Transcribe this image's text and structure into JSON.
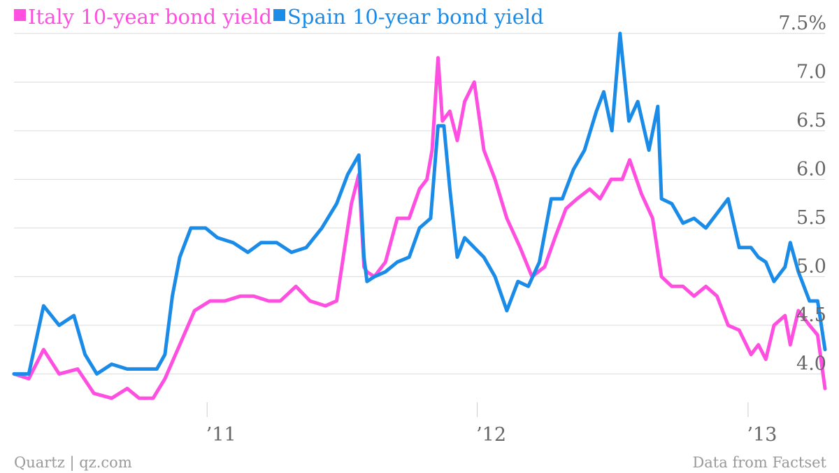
{
  "footer": {
    "source_left": "Quartz | qz.com",
    "source_right": "Data from Factset"
  },
  "legend": {
    "placement": "top-left"
  },
  "colors": {
    "italy": "#ff4fe0",
    "spain": "#1a8ce8",
    "grid": "#dcdcdc",
    "tick_text": "#666666",
    "footer_text": "#999999"
  },
  "chart_data": {
    "type": "line",
    "title": "",
    "xlabel": "",
    "ylabel": "",
    "grid": true,
    "x_range": [
      "2010-04-15",
      "2013-04-15"
    ],
    "ylim": [
      3.6,
      7.7
    ],
    "y_ticks": [
      {
        "value": 4.0,
        "label": "4.0"
      },
      {
        "value": 4.5,
        "label": "4.5"
      },
      {
        "value": 5.0,
        "label": "5.0"
      },
      {
        "value": 5.5,
        "label": "5.5"
      },
      {
        "value": 6.0,
        "label": "6.0"
      },
      {
        "value": 6.5,
        "label": "6.5"
      },
      {
        "value": 7.0,
        "label": "7.0"
      },
      {
        "value": 7.5,
        "label": "7.5%"
      }
    ],
    "x_ticks": [
      {
        "value": "2011-01-01",
        "label": "’11"
      },
      {
        "value": "2012-01-01",
        "label": "’12"
      },
      {
        "value": "2013-01-01",
        "label": "’13"
      }
    ],
    "series": [
      {
        "name": "Italy 10-year bond yield",
        "color": "#ff4fe0",
        "x": [
          "2010-04-15",
          "2010-05-05",
          "2010-05-25",
          "2010-06-15",
          "2010-07-10",
          "2010-08-01",
          "2010-08-25",
          "2010-09-15",
          "2010-10-01",
          "2010-10-20",
          "2010-11-05",
          "2010-11-25",
          "2010-12-15",
          "2011-01-05",
          "2011-01-25",
          "2011-02-15",
          "2011-03-05",
          "2011-03-25",
          "2011-04-10",
          "2011-05-01",
          "2011-05-20",
          "2011-06-10",
          "2011-06-25",
          "2011-07-05",
          "2011-07-15",
          "2011-07-25",
          "2011-08-01",
          "2011-08-05",
          "2011-08-15",
          "2011-08-30",
          "2011-09-15",
          "2011-10-01",
          "2011-10-15",
          "2011-10-25",
          "2011-11-01",
          "2011-11-09",
          "2011-11-15",
          "2011-11-25",
          "2011-12-05",
          "2011-12-15",
          "2011-12-28",
          "2012-01-10",
          "2012-01-25",
          "2012-02-10",
          "2012-02-28",
          "2012-03-15",
          "2012-04-01",
          "2012-04-15",
          "2012-04-30",
          "2012-05-15",
          "2012-06-01",
          "2012-06-15",
          "2012-06-30",
          "2012-07-15",
          "2012-07-25",
          "2012-08-10",
          "2012-08-25",
          "2012-09-06",
          "2012-09-20",
          "2012-10-05",
          "2012-10-20",
          "2012-11-05",
          "2012-11-20",
          "2012-12-05",
          "2012-12-20",
          "2013-01-05",
          "2013-01-15",
          "2013-01-25",
          "2013-02-05",
          "2013-02-20",
          "2013-02-27",
          "2013-03-10",
          "2013-03-25",
          "2013-04-05",
          "2013-04-15"
        ],
        "values": [
          4.0,
          3.95,
          4.25,
          4.0,
          4.05,
          3.8,
          3.75,
          3.85,
          3.75,
          3.75,
          3.95,
          4.3,
          4.65,
          4.75,
          4.75,
          4.8,
          4.8,
          4.75,
          4.75,
          4.9,
          4.75,
          4.7,
          4.75,
          5.25,
          5.75,
          6.05,
          5.1,
          5.05,
          5.0,
          5.15,
          5.6,
          5.6,
          5.9,
          6.0,
          6.3,
          7.25,
          6.6,
          6.7,
          6.4,
          6.8,
          7.0,
          6.3,
          6.0,
          5.6,
          5.3,
          5.0,
          5.1,
          5.4,
          5.7,
          5.8,
          5.9,
          5.8,
          6.0,
          6.0,
          6.2,
          5.85,
          5.6,
          5.0,
          4.9,
          4.9,
          4.8,
          4.9,
          4.8,
          4.5,
          4.45,
          4.2,
          4.3,
          4.15,
          4.5,
          4.6,
          4.3,
          4.65,
          4.5,
          4.4,
          3.85
        ]
      },
      {
        "name": "Spain 10-year bond yield",
        "color": "#1a8ce8",
        "x": [
          "2010-04-15",
          "2010-05-05",
          "2010-05-25",
          "2010-06-15",
          "2010-07-05",
          "2010-07-20",
          "2010-08-05",
          "2010-08-25",
          "2010-09-15",
          "2010-10-05",
          "2010-10-25",
          "2010-11-05",
          "2010-11-15",
          "2010-11-25",
          "2010-12-10",
          "2010-12-30",
          "2011-01-15",
          "2011-02-05",
          "2011-02-25",
          "2011-03-15",
          "2011-04-05",
          "2011-04-25",
          "2011-05-15",
          "2011-06-05",
          "2011-06-25",
          "2011-07-10",
          "2011-07-25",
          "2011-08-01",
          "2011-08-05",
          "2011-08-15",
          "2011-08-30",
          "2011-09-15",
          "2011-10-01",
          "2011-10-15",
          "2011-10-30",
          "2011-11-09",
          "2011-11-17",
          "2011-11-25",
          "2011-12-05",
          "2011-12-15",
          "2011-12-28",
          "2012-01-10",
          "2012-01-25",
          "2012-02-10",
          "2012-02-25",
          "2012-03-10",
          "2012-03-25",
          "2012-04-10",
          "2012-04-25",
          "2012-05-10",
          "2012-05-25",
          "2012-06-10",
          "2012-06-20",
          "2012-07-01",
          "2012-07-12",
          "2012-07-24",
          "2012-08-05",
          "2012-08-20",
          "2012-09-01",
          "2012-09-06",
          "2012-09-20",
          "2012-10-05",
          "2012-10-20",
          "2012-11-05",
          "2012-11-20",
          "2012-12-05",
          "2012-12-20",
          "2013-01-05",
          "2013-01-15",
          "2013-01-25",
          "2013-02-05",
          "2013-02-20",
          "2013-02-27",
          "2013-03-10",
          "2013-03-25",
          "2013-04-05",
          "2013-04-15"
        ],
        "values": [
          4.0,
          4.0,
          4.7,
          4.5,
          4.6,
          4.2,
          4.0,
          4.1,
          4.05,
          4.05,
          4.05,
          4.2,
          4.8,
          5.2,
          5.5,
          5.5,
          5.4,
          5.35,
          5.25,
          5.35,
          5.35,
          5.25,
          5.3,
          5.5,
          5.75,
          6.05,
          6.25,
          5.2,
          4.95,
          5.0,
          5.05,
          5.15,
          5.2,
          5.5,
          5.6,
          6.55,
          6.55,
          5.9,
          5.2,
          5.4,
          5.3,
          5.2,
          5.0,
          4.65,
          4.95,
          4.9,
          5.15,
          5.8,
          5.8,
          6.1,
          6.3,
          6.7,
          6.9,
          6.5,
          7.5,
          6.6,
          6.8,
          6.3,
          6.75,
          5.8,
          5.75,
          5.55,
          5.6,
          5.5,
          5.65,
          5.8,
          5.3,
          5.3,
          5.2,
          5.15,
          4.95,
          5.1,
          5.35,
          5.05,
          4.75,
          4.75,
          4.25
        ]
      }
    ]
  }
}
